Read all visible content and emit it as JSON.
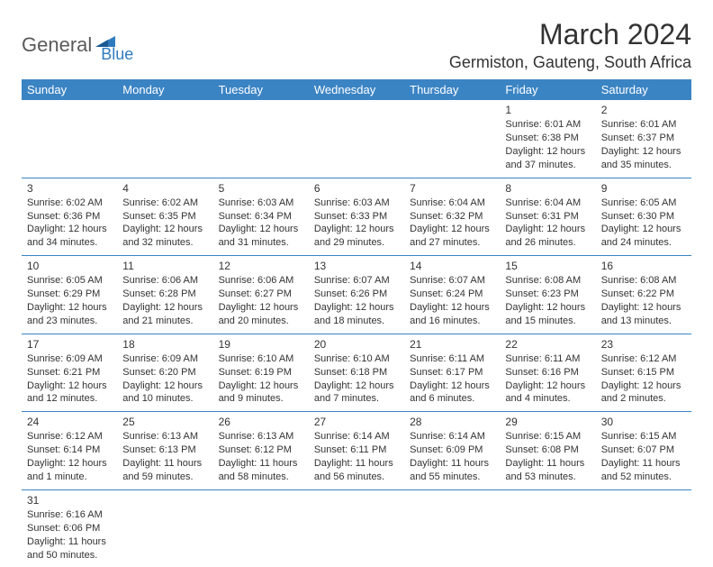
{
  "logo": {
    "part1": "General",
    "part2": "Blue"
  },
  "title": "March 2024",
  "location": "Germiston, Gauteng, South Africa",
  "dayHeaders": [
    "Sunday",
    "Monday",
    "Tuesday",
    "Wednesday",
    "Thursday",
    "Friday",
    "Saturday"
  ],
  "colors": {
    "headerBg": "#3b84c4",
    "headerText": "#ffffff",
    "borderColor": "#3b84c4",
    "textColor": "#333333",
    "logoGray": "#5a5a5a",
    "logoBlue": "#2f7bbf"
  },
  "weeks": [
    [
      null,
      null,
      null,
      null,
      null,
      {
        "n": "1",
        "sr": "Sunrise: 6:01 AM",
        "ss": "Sunset: 6:38 PM",
        "dl1": "Daylight: 12 hours",
        "dl2": "and 37 minutes."
      },
      {
        "n": "2",
        "sr": "Sunrise: 6:01 AM",
        "ss": "Sunset: 6:37 PM",
        "dl1": "Daylight: 12 hours",
        "dl2": "and 35 minutes."
      }
    ],
    [
      {
        "n": "3",
        "sr": "Sunrise: 6:02 AM",
        "ss": "Sunset: 6:36 PM",
        "dl1": "Daylight: 12 hours",
        "dl2": "and 34 minutes."
      },
      {
        "n": "4",
        "sr": "Sunrise: 6:02 AM",
        "ss": "Sunset: 6:35 PM",
        "dl1": "Daylight: 12 hours",
        "dl2": "and 32 minutes."
      },
      {
        "n": "5",
        "sr": "Sunrise: 6:03 AM",
        "ss": "Sunset: 6:34 PM",
        "dl1": "Daylight: 12 hours",
        "dl2": "and 31 minutes."
      },
      {
        "n": "6",
        "sr": "Sunrise: 6:03 AM",
        "ss": "Sunset: 6:33 PM",
        "dl1": "Daylight: 12 hours",
        "dl2": "and 29 minutes."
      },
      {
        "n": "7",
        "sr": "Sunrise: 6:04 AM",
        "ss": "Sunset: 6:32 PM",
        "dl1": "Daylight: 12 hours",
        "dl2": "and 27 minutes."
      },
      {
        "n": "8",
        "sr": "Sunrise: 6:04 AM",
        "ss": "Sunset: 6:31 PM",
        "dl1": "Daylight: 12 hours",
        "dl2": "and 26 minutes."
      },
      {
        "n": "9",
        "sr": "Sunrise: 6:05 AM",
        "ss": "Sunset: 6:30 PM",
        "dl1": "Daylight: 12 hours",
        "dl2": "and 24 minutes."
      }
    ],
    [
      {
        "n": "10",
        "sr": "Sunrise: 6:05 AM",
        "ss": "Sunset: 6:29 PM",
        "dl1": "Daylight: 12 hours",
        "dl2": "and 23 minutes."
      },
      {
        "n": "11",
        "sr": "Sunrise: 6:06 AM",
        "ss": "Sunset: 6:28 PM",
        "dl1": "Daylight: 12 hours",
        "dl2": "and 21 minutes."
      },
      {
        "n": "12",
        "sr": "Sunrise: 6:06 AM",
        "ss": "Sunset: 6:27 PM",
        "dl1": "Daylight: 12 hours",
        "dl2": "and 20 minutes."
      },
      {
        "n": "13",
        "sr": "Sunrise: 6:07 AM",
        "ss": "Sunset: 6:26 PM",
        "dl1": "Daylight: 12 hours",
        "dl2": "and 18 minutes."
      },
      {
        "n": "14",
        "sr": "Sunrise: 6:07 AM",
        "ss": "Sunset: 6:24 PM",
        "dl1": "Daylight: 12 hours",
        "dl2": "and 16 minutes."
      },
      {
        "n": "15",
        "sr": "Sunrise: 6:08 AM",
        "ss": "Sunset: 6:23 PM",
        "dl1": "Daylight: 12 hours",
        "dl2": "and 15 minutes."
      },
      {
        "n": "16",
        "sr": "Sunrise: 6:08 AM",
        "ss": "Sunset: 6:22 PM",
        "dl1": "Daylight: 12 hours",
        "dl2": "and 13 minutes."
      }
    ],
    [
      {
        "n": "17",
        "sr": "Sunrise: 6:09 AM",
        "ss": "Sunset: 6:21 PM",
        "dl1": "Daylight: 12 hours",
        "dl2": "and 12 minutes."
      },
      {
        "n": "18",
        "sr": "Sunrise: 6:09 AM",
        "ss": "Sunset: 6:20 PM",
        "dl1": "Daylight: 12 hours",
        "dl2": "and 10 minutes."
      },
      {
        "n": "19",
        "sr": "Sunrise: 6:10 AM",
        "ss": "Sunset: 6:19 PM",
        "dl1": "Daylight: 12 hours",
        "dl2": "and 9 minutes."
      },
      {
        "n": "20",
        "sr": "Sunrise: 6:10 AM",
        "ss": "Sunset: 6:18 PM",
        "dl1": "Daylight: 12 hours",
        "dl2": "and 7 minutes."
      },
      {
        "n": "21",
        "sr": "Sunrise: 6:11 AM",
        "ss": "Sunset: 6:17 PM",
        "dl1": "Daylight: 12 hours",
        "dl2": "and 6 minutes."
      },
      {
        "n": "22",
        "sr": "Sunrise: 6:11 AM",
        "ss": "Sunset: 6:16 PM",
        "dl1": "Daylight: 12 hours",
        "dl2": "and 4 minutes."
      },
      {
        "n": "23",
        "sr": "Sunrise: 6:12 AM",
        "ss": "Sunset: 6:15 PM",
        "dl1": "Daylight: 12 hours",
        "dl2": "and 2 minutes."
      }
    ],
    [
      {
        "n": "24",
        "sr": "Sunrise: 6:12 AM",
        "ss": "Sunset: 6:14 PM",
        "dl1": "Daylight: 12 hours",
        "dl2": "and 1 minute."
      },
      {
        "n": "25",
        "sr": "Sunrise: 6:13 AM",
        "ss": "Sunset: 6:13 PM",
        "dl1": "Daylight: 11 hours",
        "dl2": "and 59 minutes."
      },
      {
        "n": "26",
        "sr": "Sunrise: 6:13 AM",
        "ss": "Sunset: 6:12 PM",
        "dl1": "Daylight: 11 hours",
        "dl2": "and 58 minutes."
      },
      {
        "n": "27",
        "sr": "Sunrise: 6:14 AM",
        "ss": "Sunset: 6:11 PM",
        "dl1": "Daylight: 11 hours",
        "dl2": "and 56 minutes."
      },
      {
        "n": "28",
        "sr": "Sunrise: 6:14 AM",
        "ss": "Sunset: 6:09 PM",
        "dl1": "Daylight: 11 hours",
        "dl2": "and 55 minutes."
      },
      {
        "n": "29",
        "sr": "Sunrise: 6:15 AM",
        "ss": "Sunset: 6:08 PM",
        "dl1": "Daylight: 11 hours",
        "dl2": "and 53 minutes."
      },
      {
        "n": "30",
        "sr": "Sunrise: 6:15 AM",
        "ss": "Sunset: 6:07 PM",
        "dl1": "Daylight: 11 hours",
        "dl2": "and 52 minutes."
      }
    ],
    [
      {
        "n": "31",
        "sr": "Sunrise: 6:16 AM",
        "ss": "Sunset: 6:06 PM",
        "dl1": "Daylight: 11 hours",
        "dl2": "and 50 minutes."
      },
      null,
      null,
      null,
      null,
      null,
      null
    ]
  ]
}
